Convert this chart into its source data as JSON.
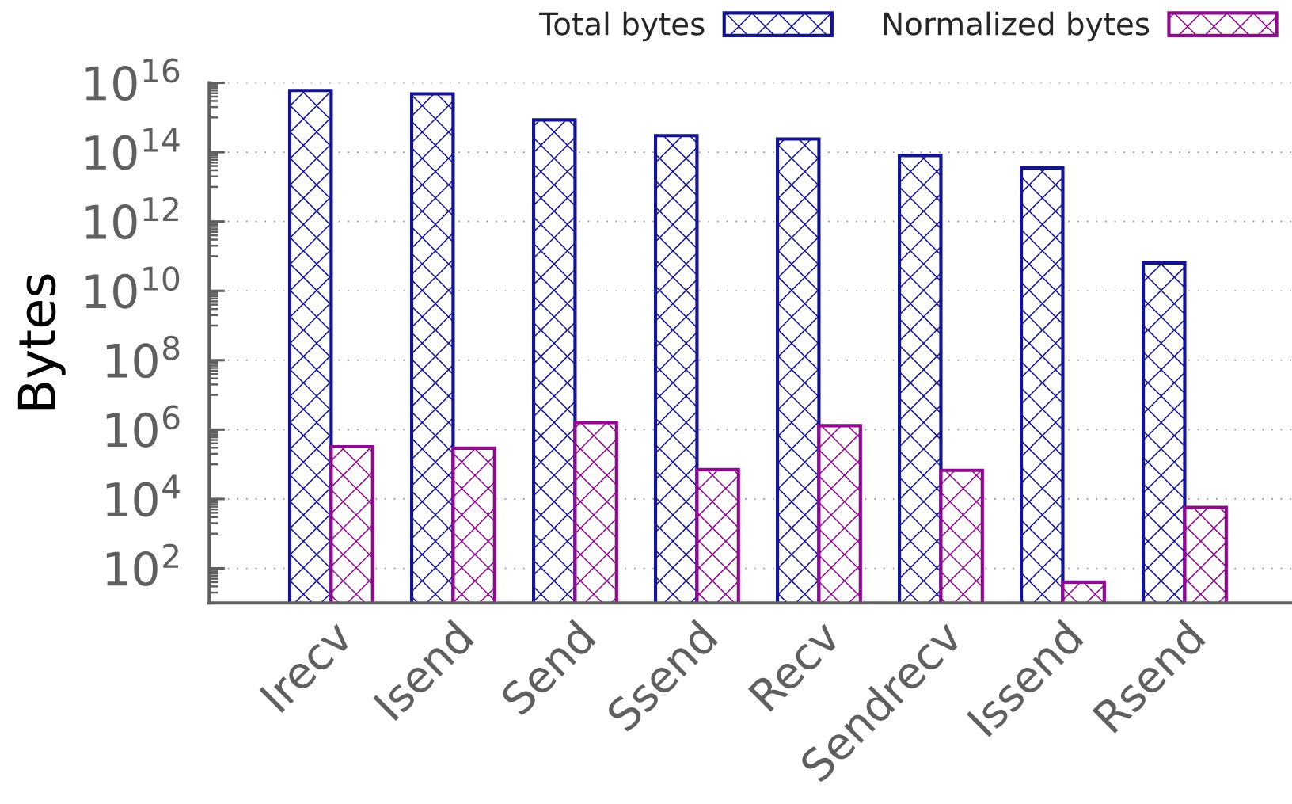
{
  "chart_data": {
    "type": "bar",
    "ylabel": "Bytes",
    "categories": [
      "Irecv",
      "Isend",
      "Send",
      "Ssend",
      "Recv",
      "Sendrecv",
      "Issend",
      "Rsend"
    ],
    "series": [
      {
        "name": "Total bytes",
        "color": "#14148c",
        "values": [
          6000000000000000.0,
          4800000000000000.0,
          850000000000000.0,
          300000000000000.0,
          240000000000000.0,
          80000000000000.0,
          35000000000000.0,
          64000000000.0
        ]
      },
      {
        "name": "Normalized bytes",
        "color": "#8c0c8c",
        "values": [
          320000.0,
          290000.0,
          1600000.0,
          70000.0,
          1300000.0,
          67000.0,
          40,
          5700.0
        ]
      }
    ],
    "log": true,
    "ylim": [
      10,
      1e+16
    ],
    "yticks": [
      {
        "value": 100,
        "label": "10$^{2}$"
      },
      {
        "value": 10000,
        "label": "10$^{4}$"
      },
      {
        "value": 1000000,
        "label": "10$^{6}$"
      },
      {
        "value": 100000000,
        "label": "10$^{8}$"
      },
      {
        "value": 10000000000,
        "label": "10$^{10}$"
      },
      {
        "value": 1000000000000,
        "label": "10$^{12}$"
      },
      {
        "value": 100000000000000,
        "label": "10$^{14}$"
      },
      {
        "value": 1e+16,
        "label": "10$^{16}$"
      }
    ],
    "grid": "y",
    "legend": "top right"
  }
}
